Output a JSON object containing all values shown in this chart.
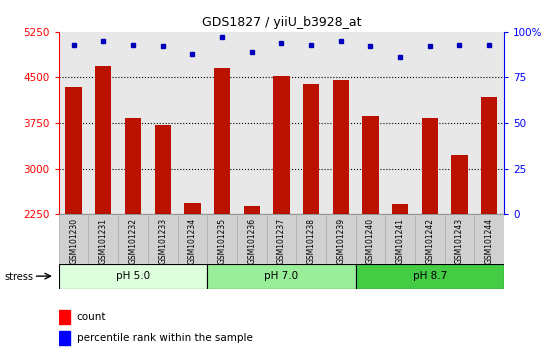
{
  "title": "GDS1827 / yiiU_b3928_at",
  "samples": [
    "GSM101230",
    "GSM101231",
    "GSM101232",
    "GSM101233",
    "GSM101234",
    "GSM101235",
    "GSM101236",
    "GSM101237",
    "GSM101238",
    "GSM101239",
    "GSM101240",
    "GSM101241",
    "GSM101242",
    "GSM101243",
    "GSM101244"
  ],
  "counts": [
    4350,
    4680,
    3830,
    3720,
    2430,
    4650,
    2380,
    4530,
    4400,
    4460,
    3870,
    2420,
    3830,
    3230,
    4180
  ],
  "percentiles": [
    93,
    95,
    93,
    92,
    88,
    97,
    89,
    94,
    93,
    95,
    92,
    86,
    92,
    93,
    93
  ],
  "groups": [
    {
      "label": "pH 5.0",
      "start": 0,
      "end": 5,
      "color": "#ddffdd"
    },
    {
      "label": "pH 7.0",
      "start": 5,
      "end": 10,
      "color": "#99ee99"
    },
    {
      "label": "pH 8.7",
      "start": 10,
      "end": 15,
      "color": "#44cc44"
    }
  ],
  "bar_color": "#bb1100",
  "dot_color": "#0000bb",
  "ylim_left": [
    2250,
    5250
  ],
  "yticks_left": [
    2250,
    3000,
    3750,
    4500,
    5250
  ],
  "ylim_right": [
    0,
    100
  ],
  "yticks_right": [
    0,
    25,
    50,
    75,
    100
  ],
  "ylabel_right_labels": [
    "0",
    "25",
    "50",
    "75",
    "100%"
  ],
  "plot_bg_color": "#e8e8e8",
  "sample_box_color": "#d0d0d0",
  "bar_width": 0.55,
  "stress_label": "stress",
  "legend_count_label": "count",
  "legend_pct_label": "percentile rank within the sample",
  "grid_lines": [
    3000,
    3750,
    4500
  ]
}
